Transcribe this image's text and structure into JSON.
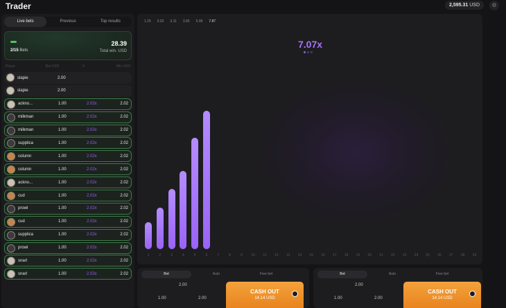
{
  "header": {
    "title": "Trader",
    "balance_value": "2,595.31",
    "balance_currency": "USD"
  },
  "left": {
    "tabs": [
      "Live bets",
      "Previous",
      "Top results"
    ],
    "summary": {
      "bets_count": "2/15",
      "bets_label": "Bets",
      "total_amount": "28.39",
      "total_label": "Total win. USD"
    },
    "columns": [
      "Player",
      "Bet USD",
      "X",
      "Win USD"
    ],
    "rows": [
      {
        "name": "slapie",
        "bet": "2.00",
        "mult": "",
        "win": "",
        "won": false,
        "av": "light"
      },
      {
        "name": "slapie",
        "bet": "2.00",
        "mult": "",
        "win": "",
        "won": false,
        "av": "light"
      },
      {
        "name": "ackno...",
        "bet": "1.00",
        "mult": "2.02x",
        "win": "2.02",
        "won": true,
        "av": "light"
      },
      {
        "name": "milkman",
        "bet": "1.00",
        "mult": "2.02x",
        "win": "2.02",
        "won": true,
        "av": "dark"
      },
      {
        "name": "milkman",
        "bet": "1.00",
        "mult": "2.02x",
        "win": "2.02",
        "won": true,
        "av": "dark"
      },
      {
        "name": "supplica",
        "bet": "1.00",
        "mult": "2.02x",
        "win": "2.02",
        "won": true,
        "av": "dark"
      },
      {
        "name": "column",
        "bet": "1.00",
        "mult": "2.02x",
        "win": "2.02",
        "won": true,
        "av": "orange"
      },
      {
        "name": "column",
        "bet": "1.00",
        "mult": "2.02x",
        "win": "2.02",
        "won": true,
        "av": "orange"
      },
      {
        "name": "ackno...",
        "bet": "1.00",
        "mult": "2.02x",
        "win": "2.02",
        "won": true,
        "av": "light"
      },
      {
        "name": "cud",
        "bet": "1.00",
        "mult": "2.02x",
        "win": "2.02",
        "won": true,
        "av": "orange"
      },
      {
        "name": "prowl",
        "bet": "1.00",
        "mult": "2.02x",
        "win": "2.02",
        "won": true,
        "av": "dark"
      },
      {
        "name": "cud",
        "bet": "1.00",
        "mult": "2.02x",
        "win": "2.02",
        "won": true,
        "av": "orange"
      },
      {
        "name": "supplica",
        "bet": "1.00",
        "mult": "2.02x",
        "win": "2.02",
        "won": true,
        "av": "dark"
      },
      {
        "name": "prowl",
        "bet": "1.00",
        "mult": "2.02x",
        "win": "2.02",
        "won": true,
        "av": "dark"
      },
      {
        "name": "snarl",
        "bet": "1.00",
        "mult": "2.02x",
        "win": "2.02",
        "won": true,
        "av": "light"
      },
      {
        "name": "snarl",
        "bet": "1.00",
        "mult": "2.02x",
        "win": "2.02",
        "won": true,
        "av": "light"
      }
    ]
  },
  "game": {
    "history": [
      "1.25",
      "0.92",
      "3.11",
      "3.65",
      "5.08",
      "7.87"
    ],
    "multiplier": "7.07x",
    "axis_labels": [
      "1",
      "2",
      "3",
      "4",
      "5",
      "6",
      "7",
      "8",
      "9",
      "10",
      "11",
      "12",
      "13",
      "14",
      "15",
      "16",
      "17",
      "18",
      "19",
      "20",
      "21",
      "22",
      "23",
      "24",
      "25",
      "26",
      "27",
      "28",
      "29"
    ],
    "bar_values": [
      1.7,
      2.6,
      3.8,
      4.9,
      7.0,
      8.7
    ],
    "bar_max": 10
  },
  "bet_panels": [
    {
      "tabs": [
        "Bet",
        "Auto",
        "Free bet"
      ],
      "amount": "2.00",
      "quick": [
        "1.00",
        "2.00"
      ],
      "cash_label": "CASH OUT",
      "cash_amount": "14.14 USD"
    },
    {
      "tabs": [
        "Bet",
        "Auto",
        "Free bet"
      ],
      "amount": "2.00",
      "quick": [
        "1.00",
        "2.00"
      ],
      "cash_label": "CASH OUT",
      "cash_amount": "14.14 USD"
    }
  ],
  "colors": {
    "accent_purple": "#9a63f5",
    "cashout_orange": "#f29a33",
    "win_green": "#3e7a48"
  },
  "icons": {
    "settings": "gear-icon",
    "coin": "coin-icon"
  }
}
